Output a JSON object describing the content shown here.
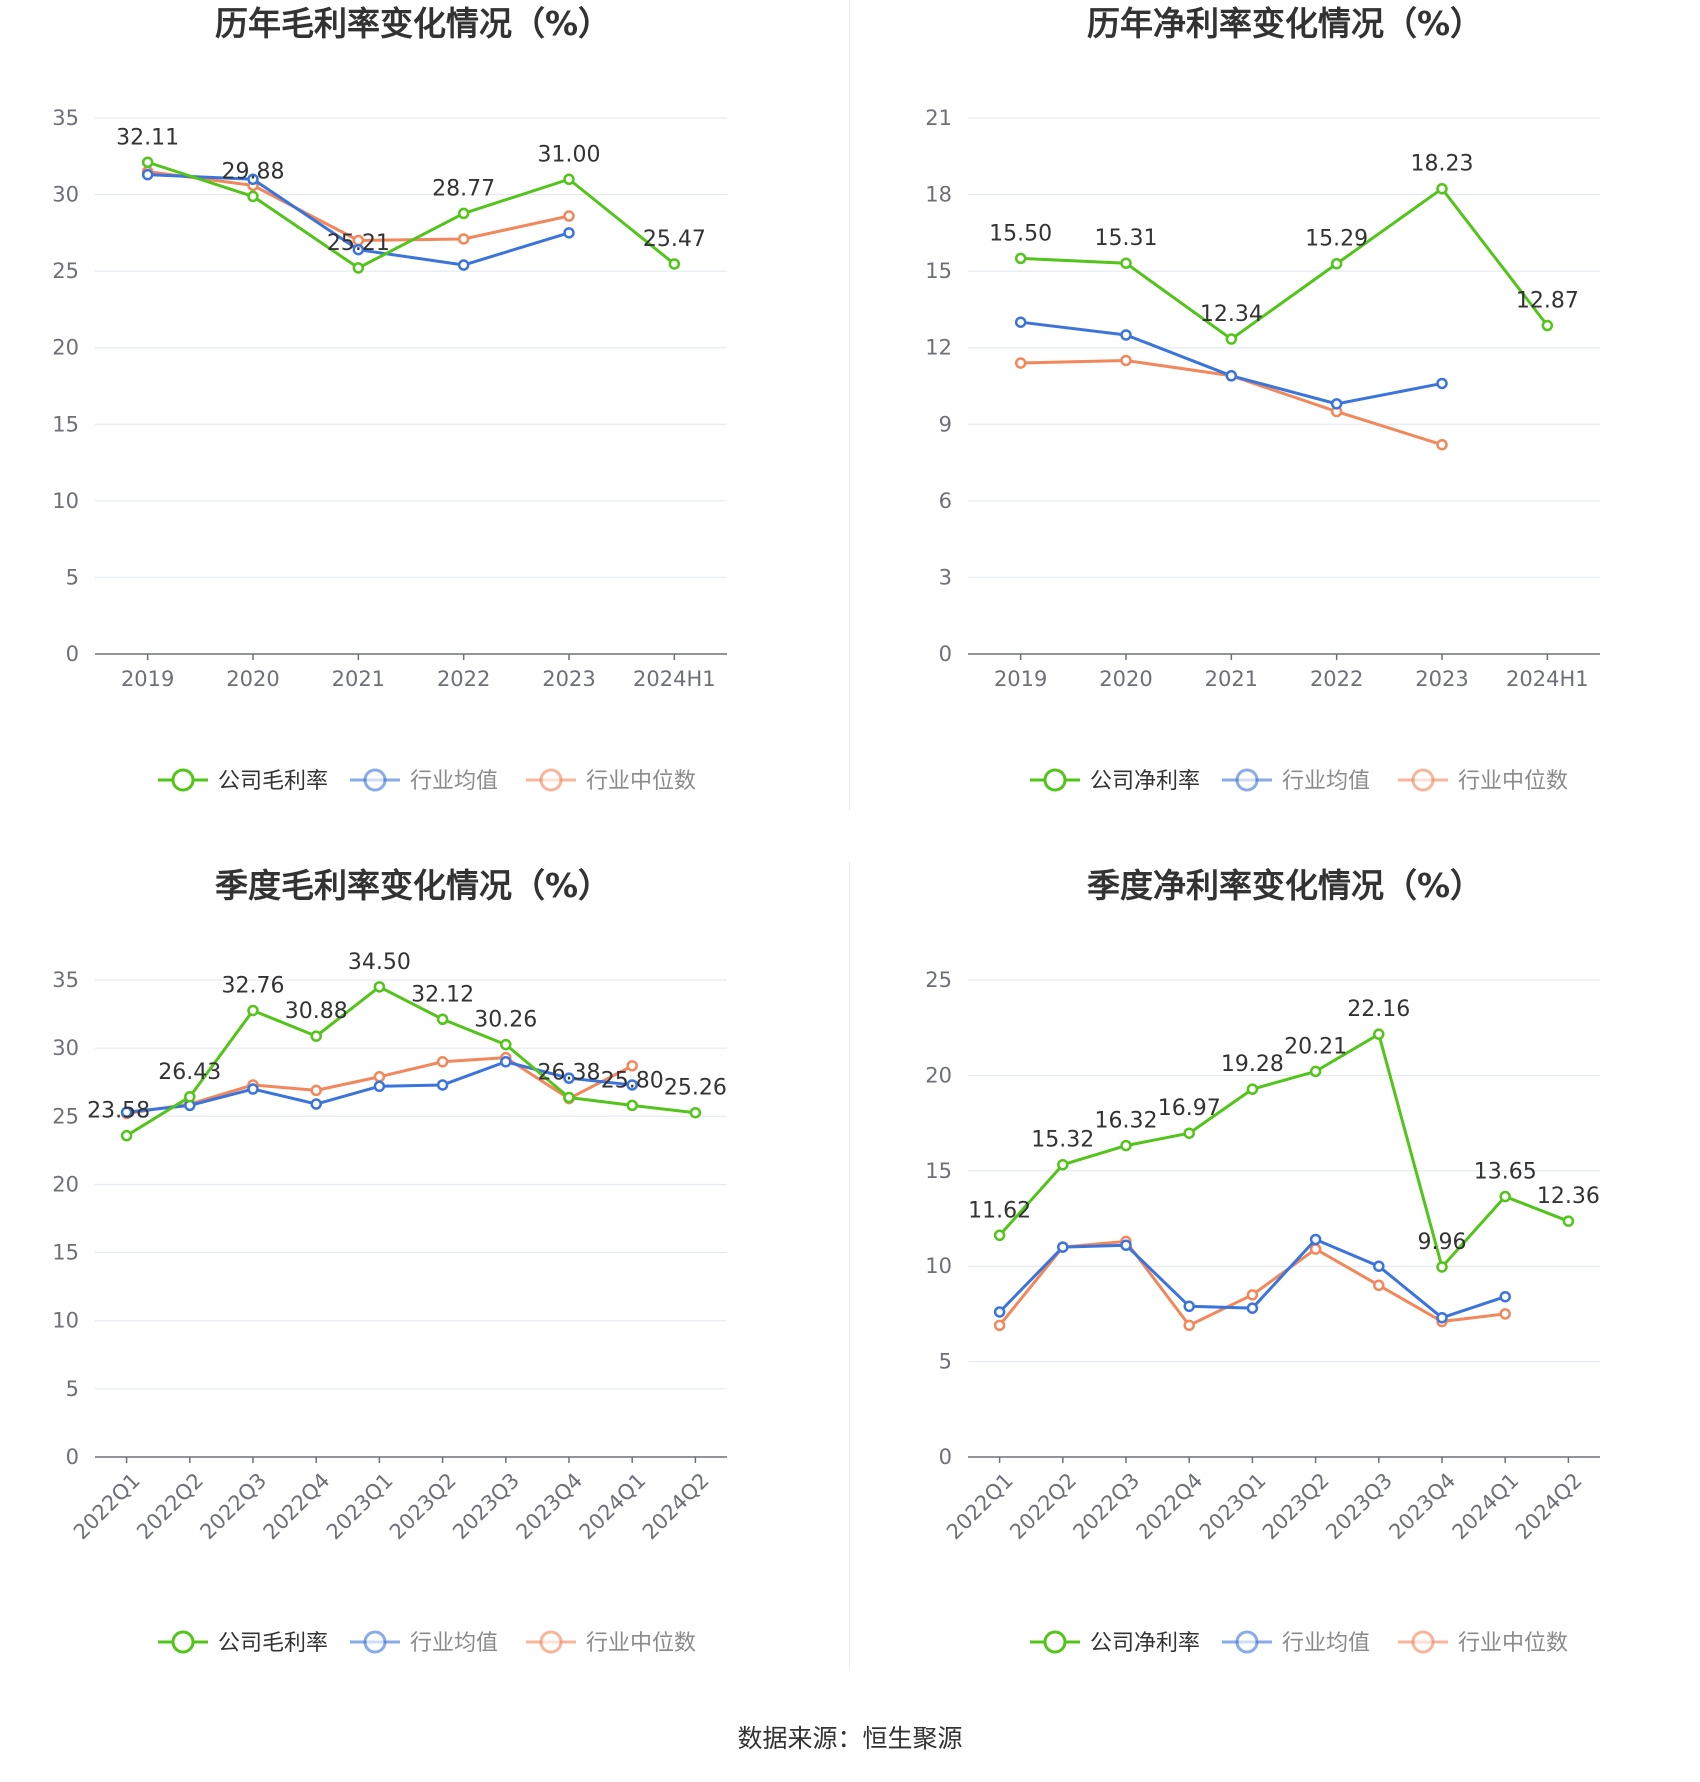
{
  "source_text": "数据来源：恒生聚源",
  "colors": {
    "company": "#52c41a",
    "average": "#3b74dc",
    "median": "#f2875b",
    "legend_muted": "#8a8a8a"
  },
  "chart_data": [
    {
      "type": "line",
      "title": "历年毛利率变化情况（%）",
      "categories": [
        "2019",
        "2020",
        "2021",
        "2022",
        "2023",
        "2024H1"
      ],
      "ylim": [
        0,
        35
      ],
      "yticks": [
        0,
        5,
        10,
        15,
        20,
        25,
        30,
        35
      ],
      "ytick_labels": [
        "0",
        "5",
        "10",
        "15",
        "20",
        "25",
        "30",
        "35"
      ],
      "legend": [
        "公司毛利率",
        "行业均值",
        "行业中位数"
      ],
      "series": [
        {
          "name": "公司毛利率",
          "values": [
            32.11,
            29.88,
            25.21,
            28.77,
            31.0,
            25.47
          ],
          "labels": [
            "32.11",
            "29.88",
            "25.21",
            "28.77",
            "31.00",
            "25.47"
          ]
        },
        {
          "name": "行业均值",
          "values": [
            31.3,
            31.0,
            26.4,
            25.4,
            27.5,
            null
          ]
        },
        {
          "name": "行业中位数",
          "values": [
            31.5,
            30.6,
            27.0,
            27.1,
            28.6,
            null
          ]
        }
      ]
    },
    {
      "type": "line",
      "title": "历年净利率变化情况（%）",
      "categories": [
        "2019",
        "2020",
        "2021",
        "2022",
        "2023",
        "2024H1"
      ],
      "ylim": [
        0,
        21
      ],
      "yticks": [
        0,
        3,
        6,
        9,
        12,
        15,
        18,
        21
      ],
      "ytick_labels": [
        "0",
        "3",
        "6",
        "9",
        "12",
        "15",
        "18",
        "21"
      ],
      "legend": [
        "公司净利率",
        "行业均值",
        "行业中位数"
      ],
      "series": [
        {
          "name": "公司净利率",
          "values": [
            15.5,
            15.31,
            12.34,
            15.29,
            18.23,
            12.87
          ],
          "labels": [
            "15.50",
            "15.31",
            "12.34",
            "15.29",
            "18.23",
            "12.87"
          ]
        },
        {
          "name": "行业均值",
          "values": [
            13.0,
            12.5,
            10.9,
            9.8,
            10.6,
            null
          ]
        },
        {
          "name": "行业中位数",
          "values": [
            11.4,
            11.5,
            10.9,
            9.5,
            8.2,
            null
          ]
        }
      ]
    },
    {
      "type": "line",
      "title": "季度毛利率变化情况（%）",
      "categories": [
        "2022Q1",
        "2022Q2",
        "2022Q3",
        "2022Q4",
        "2023Q1",
        "2023Q2",
        "2023Q3",
        "2023Q4",
        "2024Q1",
        "2024Q2"
      ],
      "ylim": [
        0,
        35
      ],
      "yticks": [
        0,
        5,
        10,
        15,
        20,
        25,
        30,
        35
      ],
      "ytick_labels": [
        "0",
        "5",
        "10",
        "15",
        "20",
        "25",
        "30",
        "35"
      ],
      "legend": [
        "公司毛利率",
        "行业均值",
        "行业中位数"
      ],
      "series": [
        {
          "name": "公司毛利率",
          "values": [
            23.58,
            26.43,
            32.76,
            30.88,
            34.5,
            32.12,
            30.26,
            26.38,
            25.8,
            25.26
          ],
          "labels": [
            "23.58",
            "26.43",
            "32.76",
            "30.88",
            "34.50",
            "32.12",
            "30.26",
            "26.38",
            "25.80",
            "25.26"
          ]
        },
        {
          "name": "行业均值",
          "values": [
            25.3,
            25.8,
            27.0,
            25.9,
            27.2,
            27.3,
            29.0,
            27.8,
            27.3,
            null
          ]
        },
        {
          "name": "行业中位数",
          "values": [
            25.2,
            25.9,
            27.3,
            26.9,
            27.9,
            29.0,
            29.3,
            26.3,
            28.7,
            null
          ]
        }
      ]
    },
    {
      "type": "line",
      "title": "季度净利率变化情况（%）",
      "categories": [
        "2022Q1",
        "2022Q2",
        "2022Q3",
        "2022Q4",
        "2023Q1",
        "2023Q2",
        "2023Q3",
        "2023Q4",
        "2024Q1",
        "2024Q2"
      ],
      "ylim": [
        0,
        25
      ],
      "yticks": [
        0,
        5,
        10,
        15,
        20,
        25
      ],
      "ytick_labels": [
        "0",
        "5",
        "10",
        "15",
        "20",
        "25"
      ],
      "legend": [
        "公司净利率",
        "行业均值",
        "行业中位数"
      ],
      "series": [
        {
          "name": "公司净利率",
          "values": [
            11.62,
            15.32,
            16.32,
            16.97,
            19.28,
            20.21,
            22.16,
            9.96,
            13.65,
            12.36
          ],
          "labels": [
            "11.62",
            "15.32",
            "16.32",
            "16.97",
            "19.28",
            "20.21",
            "22.16",
            "9.96",
            "13.65",
            "12.36"
          ]
        },
        {
          "name": "行业均值",
          "values": [
            7.6,
            11.0,
            11.1,
            7.9,
            7.8,
            11.4,
            10.0,
            7.3,
            8.4,
            null
          ]
        },
        {
          "name": "行业中位数",
          "values": [
            6.9,
            11.0,
            11.3,
            6.9,
            8.5,
            10.9,
            9.0,
            7.1,
            7.5,
            null
          ]
        }
      ]
    }
  ]
}
